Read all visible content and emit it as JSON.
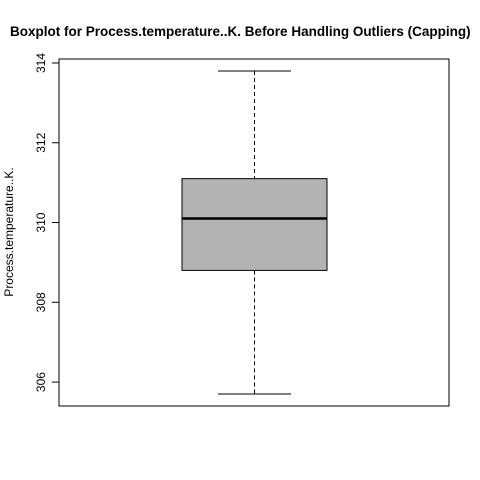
{
  "chart_data": {
    "type": "boxplot",
    "title": "Boxplot for Process.temperature..K. Before Handling Outliers (Capping)",
    "xlabel": "",
    "ylabel": "Process.temperature..K.",
    "ylim": [
      305.4,
      314.1
    ],
    "yticks": [
      306,
      308,
      310,
      312,
      314
    ],
    "grid": false,
    "box": {
      "whisker_low": 305.7,
      "q1": 308.8,
      "median": 310.1,
      "q3": 311.1,
      "whisker_high": 313.8,
      "fill": "#b3b3b3"
    }
  }
}
